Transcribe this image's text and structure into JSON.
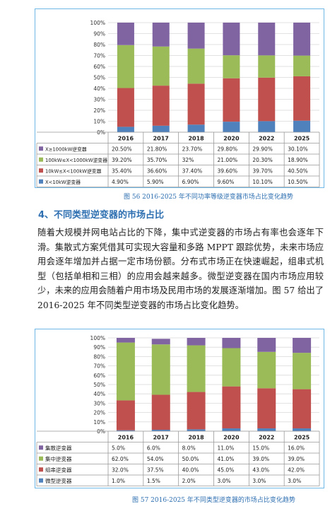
{
  "figure1": {
    "caption": "图 56 2016-2025 年不同功率等级逆变器市场占比变化趋势",
    "chart_data": {
      "type": "bar",
      "stacked": true,
      "categories": [
        "2016",
        "2017",
        "2018",
        "2020",
        "2022",
        "2025"
      ],
      "yticks": [
        "0%",
        "10%",
        "20%",
        "30%",
        "40%",
        "50%",
        "60%",
        "70%",
        "80%",
        "90%",
        "100%"
      ],
      "ylim": [
        0,
        100
      ],
      "grid": true,
      "legend": "table-below",
      "series": [
        {
          "name": "X<10kW逆变器",
          "color": "#4f81bd",
          "values": [
            4.9,
            5.9,
            6.9,
            9.6,
            10.1,
            10.5
          ],
          "labels": [
            "4.90%",
            "5.90%",
            "6.90%",
            "9.60%",
            "10.10%",
            "10.50%"
          ]
        },
        {
          "name": "10kW≤X<100kW逆变器",
          "color": "#c0504d",
          "values": [
            35.4,
            36.6,
            37.4,
            39.6,
            39.7,
            40.5
          ],
          "labels": [
            "35.40%",
            "36.60%",
            "37.40%",
            "39.60%",
            "39.70%",
            "40.50%"
          ]
        },
        {
          "name": "100kW≤X<1000kW逆变器",
          "color": "#9bbb59",
          "values": [
            39.2,
            35.7,
            32,
            21,
            20.3,
            18.9
          ],
          "labels": [
            "39.20%",
            "35.70%",
            "32%",
            "21.00%",
            "20.30%",
            "18.90%"
          ]
        },
        {
          "name": "X≥1000kW逆变器",
          "color": "#8064a2",
          "values": [
            20.5,
            21.8,
            23.7,
            29.8,
            29.9,
            30.1
          ],
          "labels": [
            "20.50%",
            "21.80%",
            "23.70%",
            "29.80%",
            "29.90%",
            "30.10%"
          ]
        }
      ]
    }
  },
  "section": {
    "heading": "4、不同类型逆变器的市场占比",
    "paragraph": "随着大规模并网电站占比的下降，集中式逆变器的市场占有率也会逐年下滑。集散式方案凭借其可实现大容量和多路 MPPT 跟踪优势，未来市场应用会逐年增加并占据一定市场份额。分布式市场正在快速崛起，组串式机型（包括单相和三相）的应用会越来越多。微型逆变器在国内市场应用较少，未来的应用会随着户用市场及民用市场的发展逐渐增加。图 57 给出了 2016-2025 年不同类型逆变器的市场占比变化趋势。"
  },
  "figure2": {
    "caption": "图 57 2016-2025 年不同类型逆变器的市场占比变化趋势",
    "chart_data": {
      "type": "bar",
      "stacked": true,
      "categories": [
        "2016",
        "2017",
        "2018",
        "2020",
        "2022",
        "2025"
      ],
      "yticks": [
        "0%",
        "10%",
        "20%",
        "30%",
        "40%",
        "50%",
        "60%",
        "70%",
        "80%",
        "90%",
        "100%"
      ],
      "ylim": [
        0,
        100
      ],
      "grid": true,
      "legend": "table-below",
      "series": [
        {
          "name": "微型逆变器",
          "color": "#4f81bd",
          "values": [
            1,
            1.5,
            2,
            3,
            3,
            3
          ],
          "labels": [
            "1.0%",
            "1.5%",
            "2.0%",
            "3.0%",
            "3.0%",
            "3.0%"
          ]
        },
        {
          "name": "组串逆变器",
          "color": "#c0504d",
          "values": [
            32,
            37.5,
            40,
            45,
            43,
            42
          ],
          "labels": [
            "32.0%",
            "37.5%",
            "40.0%",
            "45.0%",
            "43.0%",
            "42.0%"
          ]
        },
        {
          "name": "集中逆变器",
          "color": "#9bbb59",
          "values": [
            62,
            54,
            50,
            41,
            39,
            39
          ],
          "labels": [
            "62.0%",
            "54.0%",
            "50.0%",
            "41.0%",
            "39.0%",
            "39.0%"
          ]
        },
        {
          "name": "集散逆变器",
          "color": "#8064a2",
          "values": [
            5,
            6,
            8,
            11,
            15,
            16
          ],
          "labels": [
            "5.0%",
            "6.0%",
            "8.0%",
            "11.0%",
            "15.0%",
            "16.0%"
          ]
        }
      ]
    }
  }
}
